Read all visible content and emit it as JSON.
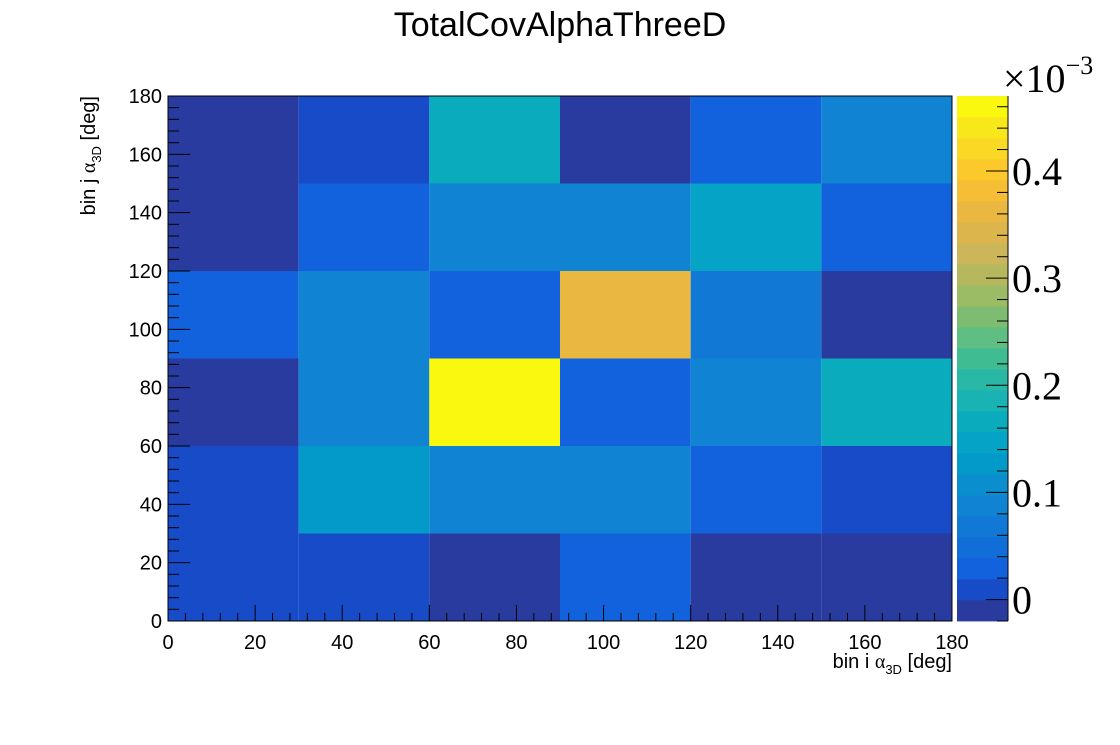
{
  "chart_data": {
    "type": "heatmap",
    "title": "TotalCovAlphaThreeD",
    "xlabel": {
      "prefix": "bin i ",
      "symbol": "α",
      "subscript": "3D",
      "suffix": " [deg]"
    },
    "ylabel": {
      "prefix": "bin j ",
      "symbol": "α",
      "subscript": "3D",
      "suffix": " [deg]"
    },
    "x_edges": [
      0,
      30,
      60,
      90,
      120,
      150,
      180
    ],
    "y_edges": [
      0,
      30,
      60,
      90,
      120,
      150,
      180
    ],
    "xlim": [
      0,
      180
    ],
    "ylim": [
      0,
      180
    ],
    "x_ticks": [
      "0",
      "20",
      "40",
      "60",
      "80",
      "100",
      "120",
      "140",
      "160",
      "180"
    ],
    "y_ticks": [
      "0",
      "20",
      "40",
      "60",
      "80",
      "100",
      "120",
      "140",
      "160",
      "180"
    ],
    "z_values_rows_bottom_to_top": [
      [
        0.0,
        0.0,
        -0.02,
        0.03,
        -0.02,
        -0.02
      ],
      [
        0.0,
        0.13,
        0.09,
        0.09,
        0.03,
        0.0
      ],
      [
        -0.02,
        0.09,
        0.47,
        0.03,
        0.09,
        0.17
      ],
      [
        0.03,
        0.09,
        0.03,
        0.36,
        0.06,
        -0.02
      ],
      [
        -0.02,
        0.03,
        0.09,
        0.09,
        0.15,
        0.03
      ],
      [
        -0.02,
        0.0,
        0.17,
        -0.02,
        0.03,
        0.09
      ]
    ],
    "z_unit_label": {
      "base": "×10",
      "exponent": "−3"
    },
    "z_range": [
      -0.02,
      0.47
    ],
    "colorbar_ticks": [
      "0",
      "0.1",
      "0.2",
      "0.3",
      "0.4"
    ],
    "colorbar_tick_values": [
      0,
      0.1,
      0.2,
      0.3,
      0.4
    ],
    "palette": [
      "#2a3b9f",
      "#184bc8",
      "#1162dc",
      "#116ed8",
      "#1178d5",
      "#1084d2",
      "#0b8ecd",
      "#0399c8",
      "#05a3c5",
      "#0aabbd",
      "#19b3b4",
      "#29b8a5",
      "#40bc93",
      "#5fbe82",
      "#7ebd71",
      "#9bbb65",
      "#b6b85d",
      "#cbb659",
      "#dcb54d",
      "#eab840",
      "#f5be35",
      "#fbc92b",
      "#f9d924",
      "#f8e81b",
      "#f9f80e"
    ],
    "colorscale": "viridis-like (ROOT kBird)",
    "grid": false,
    "legend": "colorbar-right"
  }
}
